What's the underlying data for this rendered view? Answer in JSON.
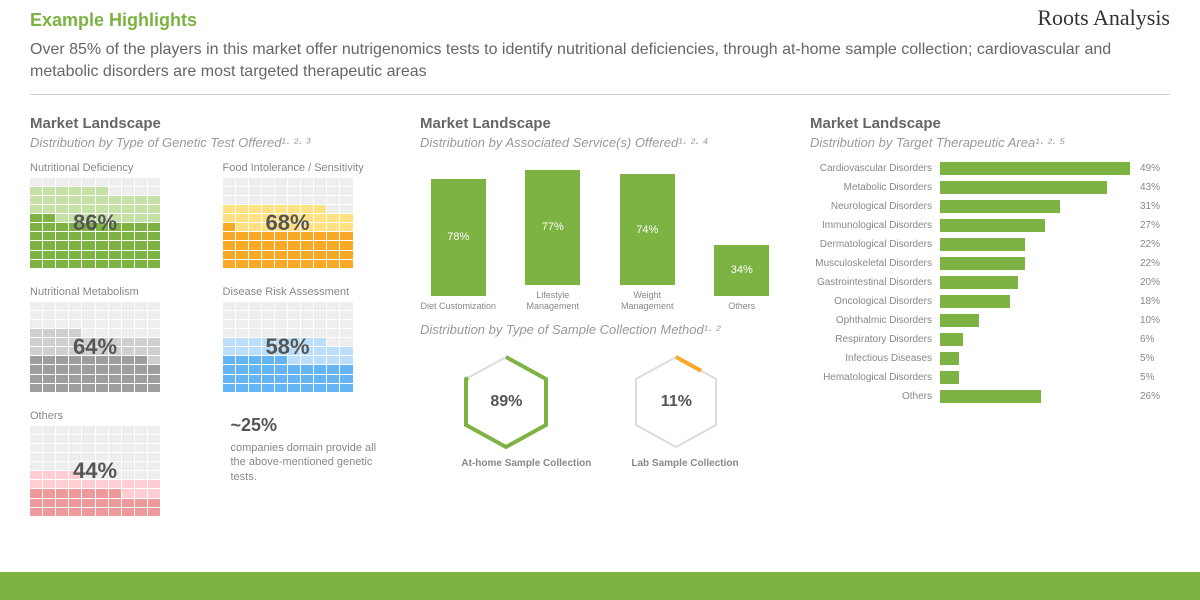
{
  "logo": "Roots Analysis",
  "header": {
    "title": "Example Highlights",
    "subtitle": "Over 85% of the players in this market offer nutrigenomics tests to identify nutritional deficiencies, through at-home sample collection; cardiovascular and metabolic disorders are most targeted therapeutic areas"
  },
  "colors": {
    "accent": "#7cb342",
    "text_muted": "#888",
    "cell_empty": "#eee"
  },
  "col1": {
    "title": "Market Landscape",
    "subtitle": "Distribution by Type of Genetic Test Offered¹· ²· ³",
    "waffles": [
      {
        "label": "Nutritional Deficiency",
        "pct": 86,
        "fill": "#7cb342",
        "light": "#c5e1a5"
      },
      {
        "label": "Food Intolerance / Sensitivity",
        "pct": 68,
        "fill": "#f9a825",
        "light": "#ffe082"
      },
      {
        "label": "Nutritional Metabolism",
        "pct": 64,
        "fill": "#9e9e9e",
        "light": "#cfcfcf"
      },
      {
        "label": "Disease Risk Assessment",
        "pct": 58,
        "fill": "#64b5f6",
        "light": "#bbdefb"
      },
      {
        "label": "Others",
        "pct": 44,
        "fill": "#ef9a9a",
        "light": "#ffcdd2"
      }
    ],
    "note_pct": "~25%",
    "note_text": "companies domain provide all the above-mentioned genetic tests."
  },
  "col2": {
    "title": "Market Landscape",
    "subtitle": "Distribution by Associated Service(s) Offered¹· ²· ⁴",
    "bars": [
      {
        "label": "Diet Customization",
        "pct": 78
      },
      {
        "label": "Lifestyle Management",
        "pct": 77
      },
      {
        "label": "Weight Management",
        "pct": 74
      },
      {
        "label": "Others",
        "pct": 34
      }
    ],
    "bar_color": "#7cb342",
    "subtitle2": "Distribution by Type of Sample Collection Method¹· ²",
    "hex": [
      {
        "label": "At-home Sample Collection",
        "pct": "89%",
        "color": "#7cb342"
      },
      {
        "label": "Lab Sample Collection",
        "pct": "11%",
        "color": "#f9a825"
      }
    ]
  },
  "col3": {
    "title": "Market Landscape",
    "subtitle": "Distribution by Target Therapeutic Area¹· ²· ⁵",
    "bar_color": "#7cb342",
    "bars": [
      {
        "label": "Cardiovascular Disorders",
        "pct": 49
      },
      {
        "label": "Metabolic Disorders",
        "pct": 43
      },
      {
        "label": "Neurological Disorders",
        "pct": 31
      },
      {
        "label": "Immunological Disorders",
        "pct": 27
      },
      {
        "label": "Dermatological Disorders",
        "pct": 22
      },
      {
        "label": "Musculoskeletal Disorders",
        "pct": 22
      },
      {
        "label": "Gastrointestinal Disorders",
        "pct": 20
      },
      {
        "label": "Oncological Disorders",
        "pct": 18
      },
      {
        "label": "Ophthalmic Disorders",
        "pct": 10
      },
      {
        "label": "Respiratory Disorders",
        "pct": 6
      },
      {
        "label": "Infectious Diseases",
        "pct": 5
      },
      {
        "label": "Hematological Disorders",
        "pct": 5
      },
      {
        "label": "Others",
        "pct": 26
      }
    ],
    "max": 50
  }
}
